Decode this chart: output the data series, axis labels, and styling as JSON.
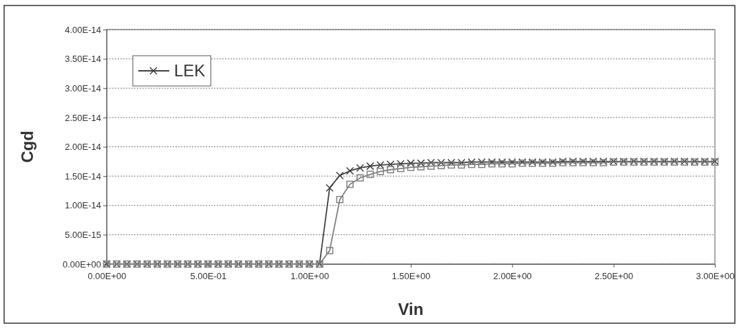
{
  "chart_data": {
    "type": "line",
    "xlabel": "Vin",
    "ylabel": "Cgd",
    "x": [
      0,
      0.05,
      0.1,
      0.15,
      0.2,
      0.25,
      0.3,
      0.35,
      0.4,
      0.45,
      0.5,
      0.55,
      0.6,
      0.65,
      0.7,
      0.75,
      0.8,
      0.85,
      0.9,
      0.95,
      1,
      1.05,
      1.1,
      1.15,
      1.2,
      1.25,
      1.3,
      1.35,
      1.4,
      1.45,
      1.5,
      1.55,
      1.6,
      1.65,
      1.7,
      1.75,
      1.8,
      1.85,
      1.9,
      1.95,
      2,
      2.05,
      2.1,
      2.15,
      2.2,
      2.25,
      2.3,
      2.35,
      2.4,
      2.45,
      2.5,
      2.55,
      2.6,
      2.65,
      2.7,
      2.75,
      2.8,
      2.85,
      2.9,
      2.95,
      3
    ],
    "series": [
      {
        "name": "LEK",
        "color": "#404040",
        "marker": "cross",
        "values": [
          0,
          0,
          0,
          0,
          0,
          0,
          0,
          0,
          0,
          0,
          0,
          0,
          0,
          0,
          0,
          0,
          0,
          0,
          0,
          0,
          0,
          0,
          1.3e-14,
          1.51e-14,
          1.59e-14,
          1.64e-14,
          1.67e-14,
          1.69e-14,
          1.7e-14,
          1.71e-14,
          1.72e-14,
          1.72e-14,
          1.73e-14,
          1.73e-14,
          1.73e-14,
          1.73e-14,
          1.74e-14,
          1.74e-14,
          1.74e-14,
          1.74e-14,
          1.74e-14,
          1.74e-14,
          1.74e-14,
          1.74e-14,
          1.74e-14,
          1.75e-14,
          1.75e-14,
          1.75e-14,
          1.75e-14,
          1.75e-14,
          1.75e-14,
          1.75e-14,
          1.75e-14,
          1.75e-14,
          1.75e-14,
          1.75e-14,
          1.75e-14,
          1.75e-14,
          1.75e-14,
          1.75e-14,
          1.75e-14
        ]
      },
      {
        "color": "#808080",
        "marker": "square",
        "values": [
          0,
          0,
          0,
          0,
          0,
          0,
          0,
          0,
          0,
          0,
          0,
          0,
          0,
          0,
          0,
          0,
          0,
          0,
          0,
          0,
          0,
          0,
          2.3e-15,
          1.1e-14,
          1.36e-14,
          1.47e-14,
          1.53e-14,
          1.58e-14,
          1.61e-14,
          1.63e-14,
          1.65e-14,
          1.66e-14,
          1.67e-14,
          1.68e-14,
          1.69e-14,
          1.69e-14,
          1.7e-14,
          1.7e-14,
          1.71e-14,
          1.71e-14,
          1.71e-14,
          1.72e-14,
          1.72e-14,
          1.72e-14,
          1.72e-14,
          1.73e-14,
          1.73e-14,
          1.73e-14,
          1.73e-14,
          1.73e-14,
          1.74e-14,
          1.74e-14,
          1.74e-14,
          1.74e-14,
          1.74e-14,
          1.74e-14,
          1.74e-14,
          1.74e-14,
          1.74e-14,
          1.74e-14,
          1.74e-14
        ]
      }
    ],
    "xlim": [
      0,
      3
    ],
    "xticks": [
      {
        "value": 0,
        "label": "0.00E+00"
      },
      {
        "value": 0.5,
        "label": "5.00E-01"
      },
      {
        "value": 1,
        "label": "1.00E+00"
      },
      {
        "value": 1.5,
        "label": "1.50E+00"
      },
      {
        "value": 2,
        "label": "2.00E+00"
      },
      {
        "value": 2.5,
        "label": "2.50E+00"
      },
      {
        "value": 3,
        "label": "3.00E+00"
      }
    ],
    "ylim": [
      0,
      4e-14
    ],
    "yticks": [
      {
        "value": 0,
        "label": "0.00E+00"
      },
      {
        "value": 5e-15,
        "label": "5.00E-15"
      },
      {
        "value": 1e-14,
        "label": "1.00E-14"
      },
      {
        "value": 1.5e-14,
        "label": "1.50E-14"
      },
      {
        "value": 2e-14,
        "label": "2.00E-14"
      },
      {
        "value": 2.5e-14,
        "label": "2.50E-14"
      },
      {
        "value": 3e-14,
        "label": "3.00E-14"
      },
      {
        "value": 3.5e-14,
        "label": "3.50E-14"
      },
      {
        "value": 4e-14,
        "label": "4.00E-14"
      }
    ],
    "grid": "y",
    "line_style": "solid",
    "legend": "top left"
  }
}
